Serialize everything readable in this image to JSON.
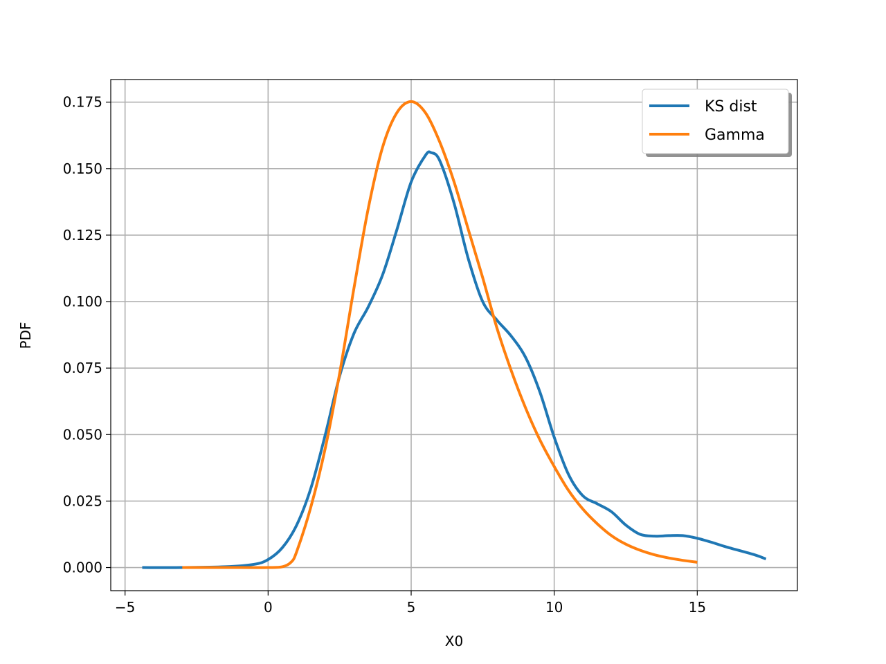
{
  "chart_data": {
    "type": "line",
    "title": "",
    "xlabel": "X0",
    "ylabel": "PDF",
    "xlim": [
      -5.5,
      18.5
    ],
    "ylim": [
      -0.0087,
      0.1835
    ],
    "grid": true,
    "legend_position": "top-right",
    "xticks": [
      -5,
      0,
      5,
      10,
      15
    ],
    "xtick_labels": [
      "−5",
      "0",
      "5",
      "10",
      "15"
    ],
    "yticks": [
      0.0,
      0.025,
      0.05,
      0.075,
      0.1,
      0.125,
      0.15,
      0.175
    ],
    "ytick_labels": [
      "0.000",
      "0.025",
      "0.050",
      "0.075",
      "0.100",
      "0.125",
      "0.150",
      "0.175"
    ],
    "series": [
      {
        "name": "KS dist",
        "color": "#1f77b4",
        "x": [
          -4.4,
          -3.0,
          -1.5,
          -0.5,
          0.0,
          0.5,
          1.0,
          1.5,
          2.0,
          2.5,
          3.0,
          3.5,
          4.0,
          4.5,
          5.0,
          5.5,
          5.7,
          6.0,
          6.5,
          7.0,
          7.5,
          8.0,
          8.5,
          9.0,
          9.5,
          10.0,
          10.5,
          11.0,
          11.5,
          12.0,
          12.5,
          13.0,
          13.5,
          14.0,
          14.5,
          15.0,
          15.5,
          16.0,
          17.0,
          17.4
        ],
        "y": [
          0.0,
          0.0,
          0.0003,
          0.0012,
          0.003,
          0.0075,
          0.016,
          0.03,
          0.05,
          0.072,
          0.088,
          0.098,
          0.11,
          0.127,
          0.145,
          0.155,
          0.156,
          0.153,
          0.137,
          0.116,
          0.1,
          0.093,
          0.087,
          0.079,
          0.066,
          0.049,
          0.035,
          0.027,
          0.024,
          0.021,
          0.016,
          0.0125,
          0.0118,
          0.012,
          0.012,
          0.011,
          0.0095,
          0.0078,
          0.0048,
          0.0032
        ]
      },
      {
        "name": "Gamma",
        "color": "#ff7f0e",
        "x": [
          -3.0,
          -1.0,
          0.0,
          0.5,
          0.8,
          1.0,
          1.5,
          2.0,
          2.5,
          3.0,
          3.5,
          4.0,
          4.5,
          5.0,
          5.5,
          6.0,
          6.5,
          7.0,
          7.5,
          8.0,
          8.5,
          9.0,
          9.5,
          10.0,
          10.5,
          11.0,
          11.5,
          12.0,
          12.5,
          13.0,
          13.5,
          14.0,
          14.5,
          15.0
        ],
        "y": [
          0.0,
          0.0,
          0.0,
          0.0003,
          0.002,
          0.006,
          0.023,
          0.045,
          0.073,
          0.105,
          0.135,
          0.158,
          0.171,
          0.1752,
          0.171,
          0.16,
          0.145,
          0.127,
          0.109,
          0.09,
          0.074,
          0.06,
          0.048,
          0.038,
          0.029,
          0.022,
          0.0165,
          0.012,
          0.0088,
          0.0065,
          0.0048,
          0.0036,
          0.0027,
          0.002
        ]
      }
    ]
  }
}
